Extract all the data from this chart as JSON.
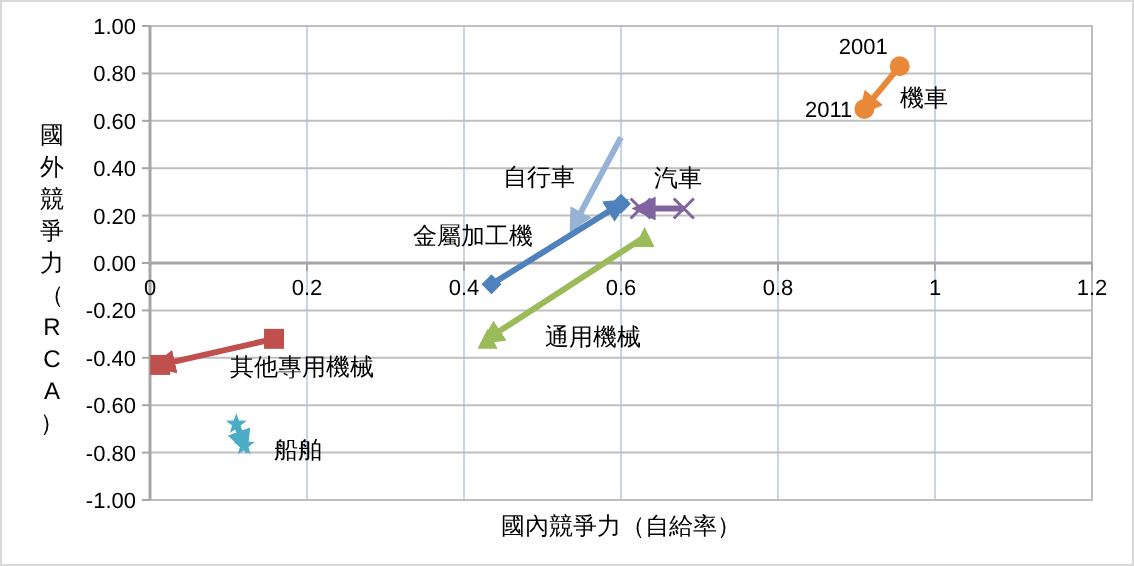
{
  "chart_data": {
    "type": "line",
    "xlabel": "國內競爭力（自給率）",
    "ylabel": "國外競爭力（RCA）",
    "xlim": [
      0,
      1.2
    ],
    "xticks": [
      0,
      0.2,
      0.4,
      0.6,
      0.8,
      1,
      1.2
    ],
    "ylim": [
      -1,
      1
    ],
    "yticks": [
      {
        "value": -1,
        "label": "-1.00"
      },
      {
        "value": -0.8,
        "label": "-0.80"
      },
      {
        "value": -0.6,
        "label": "-0.60"
      },
      {
        "value": -0.4,
        "label": "-0.40"
      },
      {
        "value": -0.2,
        "label": "-0.20"
      },
      {
        "value": 0,
        "label": "0.00"
      },
      {
        "value": 0.2,
        "label": "0.20"
      },
      {
        "value": 0.4,
        "label": "0.40"
      },
      {
        "value": 0.6,
        "label": "0.60"
      },
      {
        "value": 0.8,
        "label": "0.80"
      },
      {
        "value": 1,
        "label": "1.00"
      }
    ],
    "grid": true,
    "series": [
      {
        "name": "機車",
        "color": "#e8893a",
        "marker": "circle",
        "x": [
          0.955,
          0.91
        ],
        "values": [
          0.83,
          0.65
        ]
      },
      {
        "name": "自行車",
        "color": "#95b3d7",
        "marker": "none",
        "x": [
          0.6,
          0.54
        ],
        "values": [
          0.53,
          0.16
        ]
      },
      {
        "name": "金屬加工機",
        "color": "#4f81bd",
        "marker": "diamond",
        "x": [
          0.435,
          0.6
        ],
        "values": [
          -0.09,
          0.25
        ]
      },
      {
        "name": "汽車",
        "color": "#8064a2",
        "marker": "cross",
        "x": [
          0.68,
          0.625
        ],
        "values": [
          0.23,
          0.23
        ]
      },
      {
        "name": "通用機械",
        "color": "#9bbb59",
        "marker": "triangle",
        "x": [
          0.63,
          0.43
        ],
        "values": [
          0.11,
          -0.32
        ]
      },
      {
        "name": "其他專用機械",
        "color": "#c0504d",
        "marker": "square",
        "x": [
          0.158,
          0.013
        ],
        "values": [
          -0.32,
          -0.43
        ]
      },
      {
        "name": "船舶",
        "color": "#4bacc6",
        "marker": "star",
        "x": [
          0.11,
          0.12
        ],
        "values": [
          -0.68,
          -0.77
        ]
      }
    ],
    "annotations": [
      {
        "text": "2001",
        "x": 0.955,
        "y": 0.83
      },
      {
        "text": "2011",
        "x": 0.91,
        "y": 0.65
      }
    ]
  }
}
